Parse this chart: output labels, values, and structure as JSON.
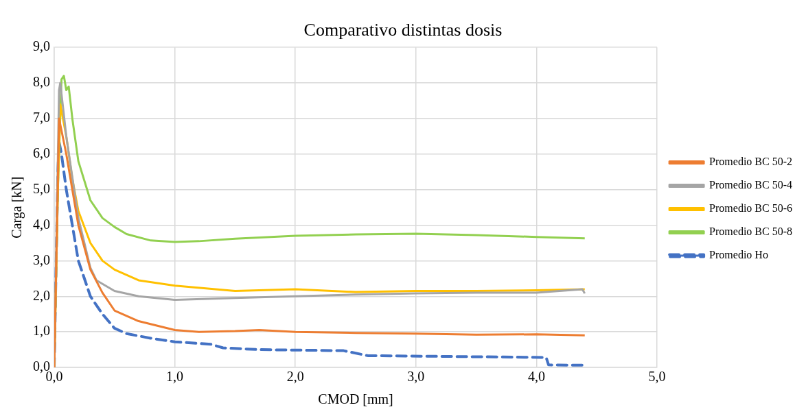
{
  "chart_data": {
    "type": "line",
    "title": "Comparativo distintas dosis",
    "xlabel": "CMOD [mm]",
    "ylabel": "Carga [kN]",
    "xlim": [
      0,
      5
    ],
    "xticks": [
      {
        "value": 0,
        "label": "0,0"
      },
      {
        "value": 1,
        "label": "1,0"
      },
      {
        "value": 2,
        "label": "2,0"
      },
      {
        "value": 3,
        "label": "3,0"
      },
      {
        "value": 4,
        "label": "4,0"
      },
      {
        "value": 5,
        "label": "5,0"
      }
    ],
    "ylim": [
      0,
      9
    ],
    "yticks": [
      {
        "value": 0,
        "label": "0,0"
      },
      {
        "value": 1,
        "label": "1,0"
      },
      {
        "value": 2,
        "label": "2,0"
      },
      {
        "value": 3,
        "label": "3,0"
      },
      {
        "value": 4,
        "label": "4,0"
      },
      {
        "value": 5,
        "label": "5,0"
      },
      {
        "value": 6,
        "label": "6,0"
      },
      {
        "value": 7,
        "label": "7,0"
      },
      {
        "value": 8,
        "label": "8,0"
      },
      {
        "value": 9,
        "label": "9,0"
      }
    ],
    "grid": true,
    "legend": "right",
    "marker": "none",
    "series": [
      {
        "name": "Promedio BC 50-2",
        "color": "#ed7d31",
        "x": [
          0,
          0.04,
          0.1,
          0.2,
          0.3,
          0.4,
          0.5,
          0.7,
          1.0,
          1.2,
          1.5,
          1.7,
          2.0,
          2.5,
          3.0,
          3.5,
          4.0,
          4.4
        ],
        "values": [
          0,
          7.0,
          6.0,
          4.0,
          2.75,
          2.1,
          1.6,
          1.3,
          1.05,
          1.0,
          1.02,
          1.05,
          1.0,
          0.97,
          0.95,
          0.92,
          0.93,
          0.9
        ]
      },
      {
        "name": "Promedio BC 50-4",
        "color": "#a5a5a5",
        "x": [
          0,
          0.04,
          0.05,
          0.1,
          0.2,
          0.3,
          0.35,
          0.5,
          0.7,
          1.0,
          1.5,
          2.0,
          2.5,
          3.0,
          3.5,
          4.0,
          4.38,
          4.4
        ],
        "values": [
          0,
          7.8,
          8.0,
          6.5,
          4.2,
          2.8,
          2.45,
          2.15,
          2.0,
          1.9,
          1.95,
          2.0,
          2.05,
          2.08,
          2.1,
          2.1,
          2.2,
          2.08
        ]
      },
      {
        "name": "Promedio BC 50-6",
        "color": "#ffc000",
        "x": [
          0,
          0.03,
          0.05,
          0.1,
          0.15,
          0.2,
          0.3,
          0.4,
          0.5,
          0.7,
          1.0,
          1.5,
          2.0,
          2.5,
          3.0,
          3.5,
          4.0,
          4.4
        ],
        "values": [
          0,
          5.0,
          7.4,
          6.5,
          5.3,
          4.4,
          3.5,
          3.0,
          2.75,
          2.45,
          2.3,
          2.15,
          2.2,
          2.12,
          2.15,
          2.15,
          2.17,
          2.2
        ]
      },
      {
        "name": "Promedio BC 50-8",
        "color": "#92d050",
        "x": [
          0,
          0.03,
          0.06,
          0.08,
          0.1,
          0.12,
          0.15,
          0.2,
          0.3,
          0.4,
          0.5,
          0.6,
          0.8,
          1.0,
          1.2,
          1.5,
          2.0,
          2.5,
          3.0,
          3.5,
          4.0,
          4.4
        ],
        "values": [
          0,
          5.0,
          8.1,
          8.2,
          7.8,
          7.9,
          7.0,
          5.8,
          4.7,
          4.2,
          3.95,
          3.75,
          3.57,
          3.53,
          3.55,
          3.62,
          3.7,
          3.74,
          3.76,
          3.72,
          3.67,
          3.63
        ]
      },
      {
        "name": "Promedio Ho",
        "color": "#4472c4",
        "line_style": "dashed",
        "x": [
          0,
          0.03,
          0.04,
          0.06,
          0.1,
          0.2,
          0.3,
          0.4,
          0.5,
          0.6,
          0.8,
          1.0,
          1.3,
          1.4,
          1.7,
          2.4,
          2.6,
          3.5,
          4.08,
          4.1,
          4.4
        ],
        "values": [
          0,
          5.5,
          6.35,
          6.0,
          5.0,
          3.0,
          2.0,
          1.5,
          1.1,
          0.95,
          0.82,
          0.72,
          0.65,
          0.55,
          0.5,
          0.47,
          0.33,
          0.3,
          0.28,
          0.07,
          0.06
        ]
      }
    ]
  }
}
